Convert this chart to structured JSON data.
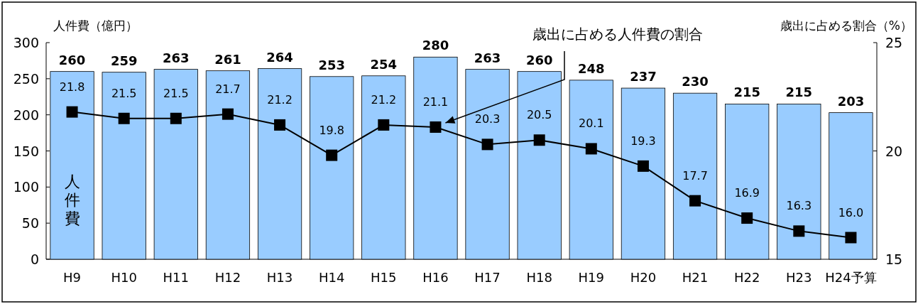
{
  "chart_data": {
    "type": "bar",
    "ylabel": "人件費（億円）",
    "y2label": "歳出に占める割合（%）",
    "categories": [
      "H9",
      "H10",
      "H11",
      "H12",
      "H13",
      "H14",
      "H15",
      "H16",
      "H17",
      "H18",
      "H19",
      "H20",
      "H21",
      "H22",
      "H23",
      "H24予算"
    ],
    "series": [
      {
        "name": "人件費",
        "color": "#99ccff",
        "values": [
          260,
          259,
          263,
          261,
          264,
          253,
          254,
          280,
          263,
          260,
          248,
          237,
          230,
          215,
          215,
          203
        ]
      },
      {
        "name": "歳出に占める人件費の割合",
        "type": "line",
        "axis": "y2",
        "color": "#000000",
        "marker": "square",
        "values": [
          21.8,
          21.5,
          21.5,
          21.7,
          21.2,
          19.8,
          21.2,
          21.1,
          20.3,
          20.5,
          20.1,
          19.3,
          17.7,
          16.9,
          16.3,
          16.0
        ],
        "value_labels": [
          "21.8",
          "21.5",
          "21.5",
          "21.7",
          "21.2",
          "19.8",
          "21.2",
          "21.1",
          "20.3",
          "20.5",
          "20.1",
          "19.3",
          "17.7",
          "16.9",
          "16.3",
          "16.0"
        ]
      }
    ],
    "ylim": [
      0,
      300
    ],
    "yticks": [
      0,
      50,
      100,
      150,
      200,
      250,
      300
    ],
    "y2lim": [
      15,
      25
    ],
    "y2ticks": [
      15,
      20,
      25
    ],
    "data_labels": true
  }
}
